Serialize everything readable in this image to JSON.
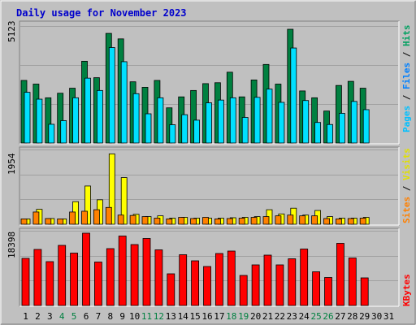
{
  "title": "Daily usage for November 2023",
  "colors": {
    "background": "#c0c0c0",
    "title": "#0000cc",
    "hits": "#008040",
    "hits_legend": "#00a060",
    "files": "#00e0ff",
    "files_legend": "#0080ff",
    "pages": "#00c0ff",
    "visits": "#ffff00",
    "visits_legend": "#e0e000",
    "sites": "#ff8000",
    "kbytes": "#ff0000",
    "weekend_label": "#008040",
    "weekday_label": "#000000",
    "grid": "#a0a0a0"
  },
  "panels": {
    "top": {
      "max_label": "5123",
      "legend": {
        "pages": "Pages",
        "sep1": " / ",
        "files": "Files",
        "sep2": " / ",
        "hits": "Hits"
      }
    },
    "middle": {
      "max_label": "1954",
      "legend": {
        "sites": "Sites",
        "sep": " / ",
        "visits": "Visits"
      }
    },
    "bottom": {
      "max_label": "18398",
      "legend": {
        "kbytes": "KBytes"
      }
    }
  },
  "chart_data": {
    "type": "bar",
    "title": "Daily usage for November 2023",
    "categories": [
      "1",
      "2",
      "3",
      "4",
      "5",
      "6",
      "7",
      "8",
      "9",
      "10",
      "11",
      "12",
      "13",
      "14",
      "15",
      "16",
      "17",
      "18",
      "19",
      "20",
      "21",
      "22",
      "23",
      "24",
      "25",
      "26",
      "27",
      "28",
      "29",
      "30",
      "31"
    ],
    "weekend_days": [
      "4",
      "5",
      "11",
      "12",
      "18",
      "19",
      "25",
      "26"
    ],
    "series": [
      {
        "name": "Hits",
        "panel": "top",
        "ymax": 5123,
        "values": [
          2740,
          2580,
          1980,
          2180,
          2400,
          3580,
          2860,
          4800,
          4560,
          2680,
          2440,
          2740,
          1540,
          2020,
          2300,
          2600,
          2640,
          3100,
          2020,
          2760,
          3440,
          2580,
          4980,
          2280,
          1980,
          1400,
          2520,
          2700,
          2400,
          0,
          0
        ]
      },
      {
        "name": "Files",
        "panel": "top",
        "ymax": 5123,
        "values": [
          2220,
          1920,
          820,
          980,
          1980,
          2840,
          2300,
          4180,
          3560,
          2160,
          1280,
          1980,
          800,
          1240,
          1000,
          1760,
          1880,
          1980,
          1120,
          2000,
          2360,
          1780,
          4160,
          1860,
          900,
          810,
          1300,
          1820,
          1460,
          0,
          0
        ]
      },
      {
        "name": "Visits",
        "panel": "middle",
        "ymax": 1954,
        "values": [
          140,
          390,
          150,
          140,
          590,
          1000,
          640,
          1840,
          1220,
          260,
          200,
          220,
          160,
          180,
          160,
          160,
          160,
          170,
          180,
          200,
          380,
          270,
          420,
          240,
          360,
          200,
          160,
          160,
          180,
          0,
          0
        ]
      },
      {
        "name": "Sites",
        "panel": "middle",
        "ymax": 1954,
        "values": [
          140,
          320,
          150,
          140,
          320,
          340,
          380,
          440,
          240,
          230,
          200,
          160,
          140,
          180,
          150,
          180,
          140,
          150,
          160,
          180,
          200,
          220,
          240,
          220,
          220,
          150,
          140,
          150,
          160,
          0,
          0
        ]
      },
      {
        "name": "KBytes",
        "panel": "bottom",
        "ymax": 18398,
        "values": [
          11600,
          13800,
          10800,
          14800,
          12900,
          17800,
          10700,
          14000,
          17100,
          15000,
          16500,
          13700,
          7800,
          12500,
          11000,
          9600,
          12800,
          13400,
          7400,
          10000,
          12400,
          10000,
          11500,
          13900,
          8300,
          6900,
          15300,
          11700,
          6800,
          0,
          0
        ]
      }
    ]
  }
}
